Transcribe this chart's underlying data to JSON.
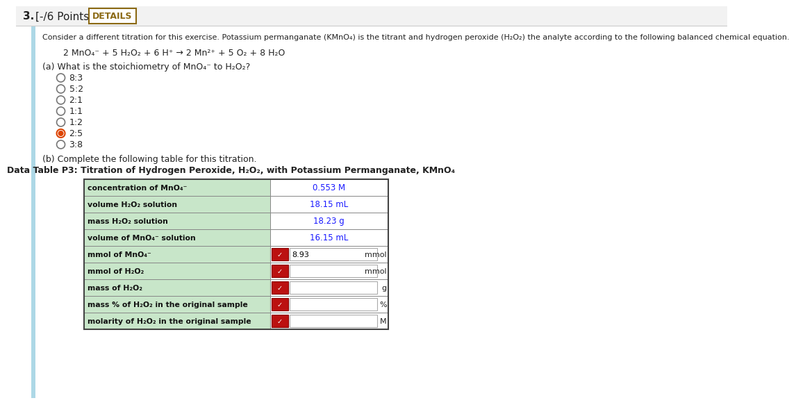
{
  "bg_color": "#ffffff",
  "header_bg": "#f2f2f2",
  "title_text": "3.  [-/6 Points]",
  "details_label": "DETAILS",
  "intro_text_line1": "Consider a different titration for this exercise. Potassium permanganate (KMnO₄) is the titrant and hydrogen peroxide (H₂O₂) the analyte according to the following balanced chemical equation.",
  "equation": "2 MnO₄⁻ + 5 H₂O₂ + 6 H⁺ → 2 Mn²⁺ + 5 O₂ + 8 H₂O",
  "part_a_question": "(a) What is the stoichiometry of MnO₄⁻ to H₂O₂?",
  "radio_options": [
    "8:3",
    "5:2",
    "2:1",
    "1:1",
    "1:2",
    "2:5",
    "3:8"
  ],
  "selected_option": "2:5",
  "part_b_text": "(b) Complete the following table for this titration.",
  "table_title": "Data Table P3: Titration of Hydrogen Peroxide, H₂O₂, with Potassium Permanganate, KMnO₄",
  "table_rows": [
    {
      "label": "concentration of MnO₄⁻",
      "value": "0.553 M",
      "value_color": "#1a1aff",
      "has_input": false,
      "unit": ""
    },
    {
      "label": "volume H₂O₂ solution",
      "value": "18.15 mL",
      "value_color": "#1a1aff",
      "has_input": false,
      "unit": ""
    },
    {
      "label": "mass H₂O₂ solution",
      "value": "18.23 g",
      "value_color": "#1a1aff",
      "has_input": false,
      "unit": ""
    },
    {
      "label": "volume of MnO₄⁻ solution",
      "value": "16.15 mL",
      "value_color": "#1a1aff",
      "has_input": false,
      "unit": ""
    },
    {
      "label": "mmol of MnO₄⁻",
      "value": "8.93",
      "value_color": "#000000",
      "has_input": true,
      "unit": "mmol"
    },
    {
      "label": "mmol of H₂O₂",
      "value": "",
      "value_color": "#000000",
      "has_input": true,
      "unit": "mmol"
    },
    {
      "label": "mass of H₂O₂",
      "value": "",
      "value_color": "#000000",
      "has_input": true,
      "unit": "g"
    },
    {
      "label": "mass % of H₂O₂ in the original sample",
      "value": "",
      "value_color": "#000000",
      "has_input": true,
      "unit": "%"
    },
    {
      "label": "molarity of H₂O₂ in the original sample",
      "value": "",
      "value_color": "#000000",
      "has_input": true,
      "unit": "M"
    }
  ],
  "table_label_bg": "#c8e6c9",
  "table_value_bg": "#ffffff",
  "left_bar_color": "#add8e6",
  "header_line_color": "#dddddd",
  "btn_border_color": "#8B6914",
  "btn_text_color": "#8B6914"
}
